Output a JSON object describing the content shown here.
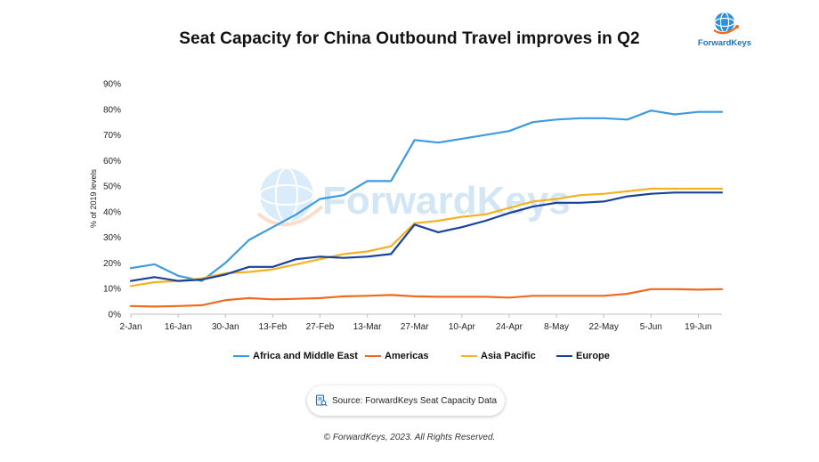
{
  "header": {
    "title": "Seat Capacity for China Outbound Travel improves in Q2",
    "logo_text": "ForwardKeys"
  },
  "watermark": {
    "text": "ForwardKeys"
  },
  "footer": {
    "source": "Source: ForwardKeys Seat Capacity Data",
    "source_icon": "document-search-icon",
    "copyright": "© ForwardKeys, 2023. All Rights Reserved."
  },
  "colors": {
    "africa_middle_east": "#3d9be0",
    "americas": "#ef6a1f",
    "asia_pacific": "#f4b123",
    "europe": "#17419a",
    "axis": "#bfbfbf",
    "brand": "#1f6fb8"
  },
  "chart_data": {
    "type": "line",
    "title": "Seat Capacity for China Outbound Travel improves in Q2",
    "ylabel": "% of 2019 levels",
    "xlabel": "",
    "ylim": [
      0,
      90
    ],
    "yticks": [
      "0%",
      "10%",
      "20%",
      "30%",
      "40%",
      "50%",
      "60%",
      "70%",
      "80%",
      "90%"
    ],
    "xticks": [
      "2-Jan",
      "16-Jan",
      "30-Jan",
      "13-Feb",
      "27-Feb",
      "13-Mar",
      "27-Mar",
      "10-Apr",
      "24-Apr",
      "8-May",
      "22-May",
      "5-Jun",
      "19-Jun"
    ],
    "x": [
      "2-Jan",
      "9-Jan",
      "16-Jan",
      "23-Jan",
      "30-Jan",
      "6-Feb",
      "13-Feb",
      "20-Feb",
      "27-Feb",
      "6-Mar",
      "13-Mar",
      "20-Mar",
      "27-Mar",
      "3-Apr",
      "10-Apr",
      "17-Apr",
      "24-Apr",
      "1-May",
      "8-May",
      "15-May",
      "22-May",
      "29-May",
      "5-Jun",
      "12-Jun",
      "19-Jun",
      "26-Jun"
    ],
    "grid": false,
    "legend_position": "bottom",
    "series": [
      {
        "name": "Africa and Middle East",
        "color": "#3d9be0",
        "values": [
          18,
          19.5,
          15,
          13,
          20,
          29,
          34,
          39,
          45,
          46.5,
          52,
          52,
          68,
          67,
          68.5,
          70,
          71.5,
          75,
          76,
          76.5,
          76.5,
          76,
          79.5,
          78,
          79,
          79
        ]
      },
      {
        "name": "Americas",
        "color": "#ef6a1f",
        "values": [
          3.2,
          3,
          3.2,
          3.5,
          5.5,
          6.3,
          5.8,
          6,
          6.3,
          7,
          7.2,
          7.5,
          7,
          6.8,
          6.8,
          6.8,
          6.5,
          7.2,
          7.2,
          7.2,
          7.2,
          8,
          9.8,
          9.8,
          9.6,
          9.8
        ]
      },
      {
        "name": "Asia Pacific",
        "color": "#f4b123",
        "values": [
          11,
          12.5,
          13,
          14,
          16,
          16.5,
          17.5,
          19.5,
          21.5,
          23.5,
          24.5,
          26.5,
          35.5,
          36.5,
          38,
          39,
          41.5,
          44,
          45,
          46.5,
          47,
          48,
          49,
          49,
          49,
          49
        ]
      },
      {
        "name": "Europe",
        "color": "#17419a",
        "values": [
          13,
          14.5,
          13,
          13.5,
          15.5,
          18.5,
          18.5,
          21.5,
          22.5,
          22,
          22.5,
          23.5,
          35,
          32,
          34,
          36.5,
          39.5,
          42,
          43.5,
          43.5,
          44,
          46,
          47,
          47.5,
          47.5,
          47.5
        ]
      }
    ]
  }
}
